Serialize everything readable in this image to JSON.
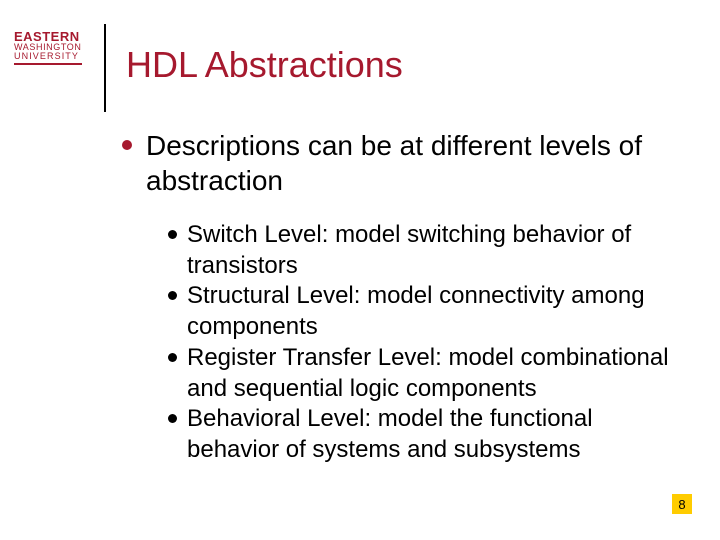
{
  "logo": {
    "line1": "EASTERN",
    "line2": "WASHINGTON",
    "line3": "UNIVERSITY",
    "text_color": "#a6192e",
    "bar_color": "#a6192e"
  },
  "title": {
    "text": "HDL Abstractions",
    "color": "#a6192e",
    "fontsize": 36
  },
  "bullet_color": "#a6192e",
  "sub_bullet_color": "#000000",
  "main_point": "Descriptions can be at different levels of abstraction",
  "sub_points": [
    "Switch Level: model switching behavior of transistors",
    "Structural Level: model connectivity among components",
    "Register Transfer Level: model combinational and sequential logic components",
    "Behavioral Level: model the functional behavior of systems and subsystems"
  ],
  "page_number": "8",
  "page_number_bg": "#ffcc00",
  "text_color": "#000000",
  "background_color": "#ffffff"
}
